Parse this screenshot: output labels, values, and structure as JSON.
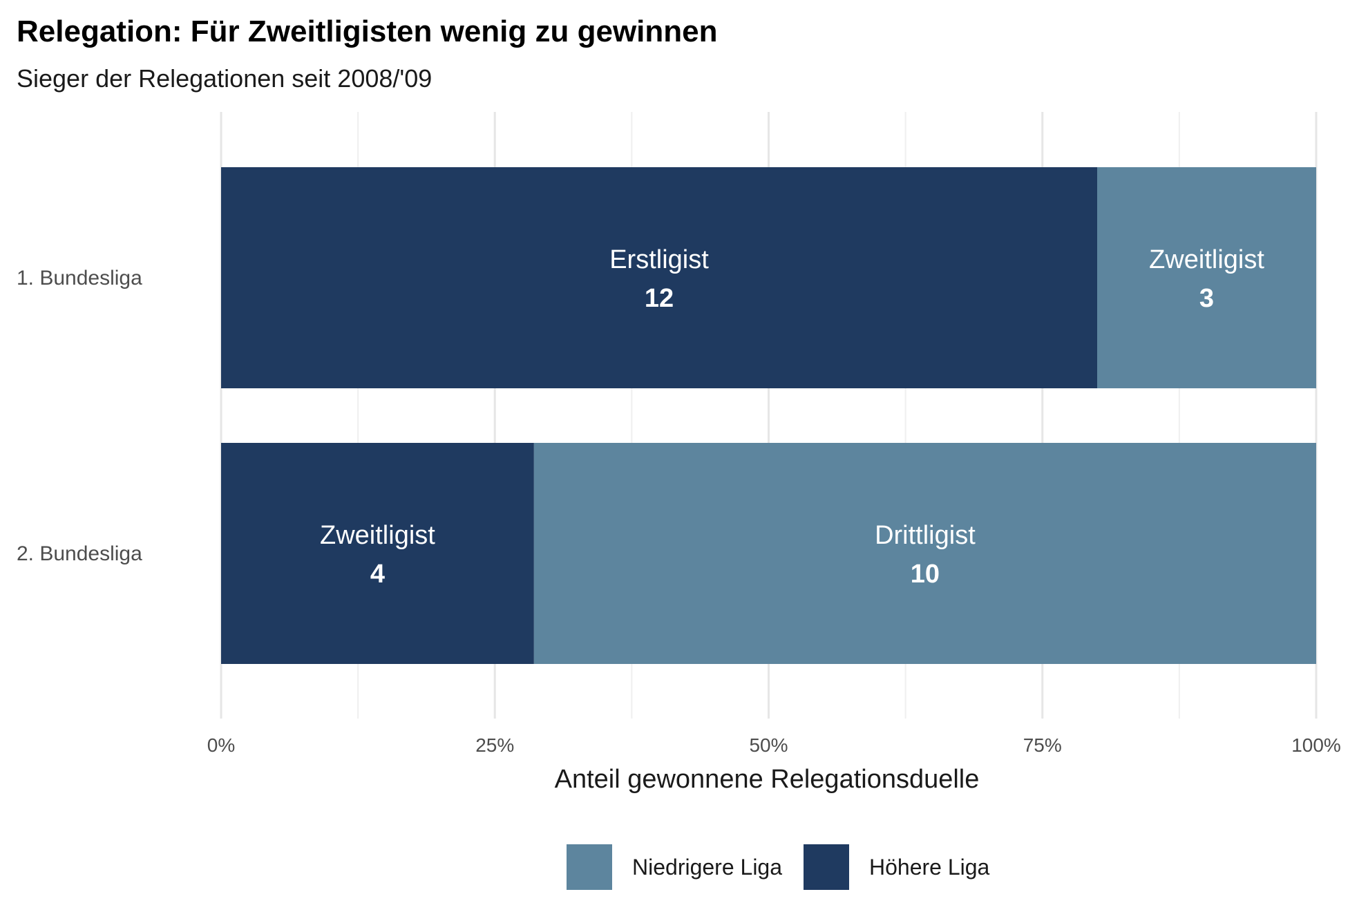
{
  "chart_data": {
    "type": "bar",
    "orientation": "horizontal",
    "stacked": "percent",
    "title": "Relegation: Für Zweitligisten wenig zu gewinnen",
    "subtitle": "Sieger der Relegationen seit 2008/'09",
    "xlabel": "Anteil gewonnene Relegationsduelle",
    "ylabel": "",
    "xlim": [
      0,
      100
    ],
    "x_ticks": [
      0,
      25,
      50,
      75,
      100
    ],
    "x_tick_labels": [
      "0%",
      "25%",
      "50%",
      "75%",
      "100%"
    ],
    "grid": true,
    "categories": [
      "1. Bundesliga",
      "2. Bundesliga"
    ],
    "series": [
      {
        "name": "Höhere Liga",
        "color": "#1f3a60",
        "values": [
          12,
          4
        ],
        "segment_labels": [
          "Erstligist",
          "Zweitligist"
        ]
      },
      {
        "name": "Niedrigere Liga",
        "color": "#5d859e",
        "values": [
          3,
          10
        ],
        "segment_labels": [
          "Zweitligist",
          "Drittligist"
        ]
      }
    ],
    "legend": {
      "position": "bottom",
      "order": [
        "Niedrigere Liga",
        "Höhere Liga"
      ]
    }
  }
}
